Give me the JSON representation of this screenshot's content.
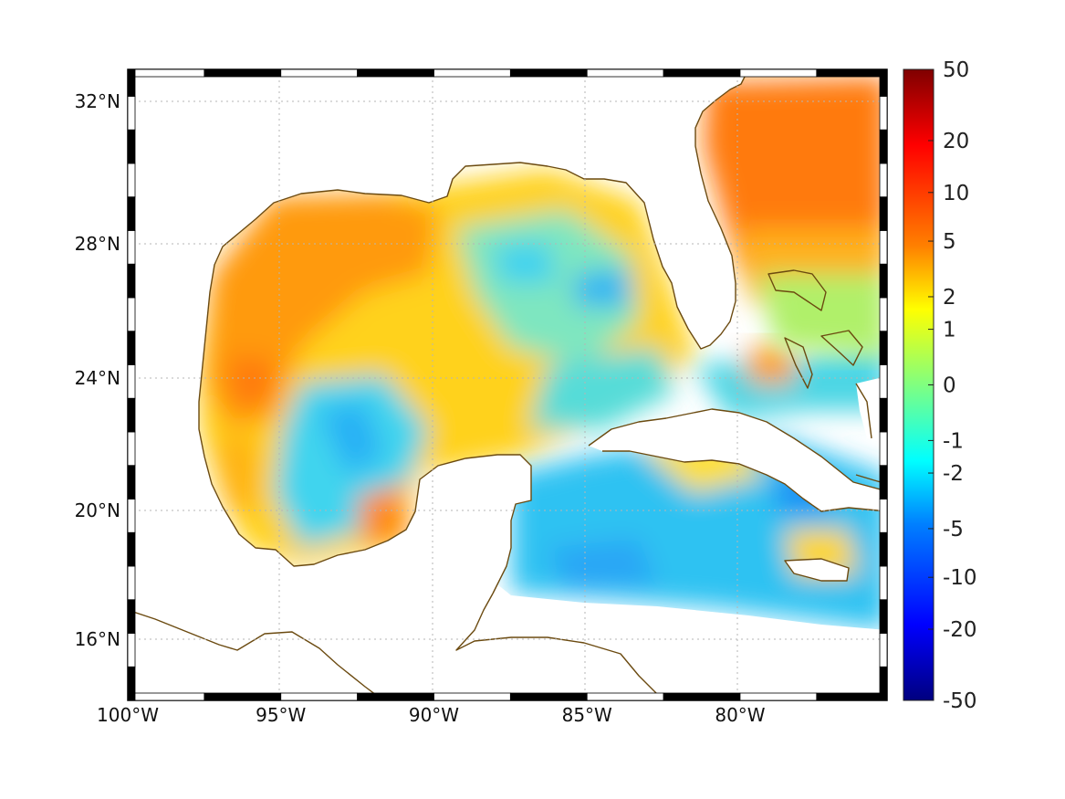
{
  "map": {
    "region": "Gulf of Mexico and Caribbean",
    "lon_range": [
      -100,
      -75.2
    ],
    "lat_range": [
      14.2,
      33.0
    ],
    "grid": true,
    "lon_ticks": [
      {
        "value": -100,
        "label": "100°W"
      },
      {
        "value": -95,
        "label": "95°W"
      },
      {
        "value": -90,
        "label": "90°W"
      },
      {
        "value": -85,
        "label": "85°W"
      },
      {
        "value": -80,
        "label": "80°W"
      }
    ],
    "lat_ticks": [
      {
        "value": 32,
        "label": "32°N"
      },
      {
        "value": 28,
        "label": "28°N"
      },
      {
        "value": 24,
        "label": "24°N"
      },
      {
        "value": 20,
        "label": "20°N"
      },
      {
        "value": 16,
        "label": "16°N"
      }
    ],
    "coastline_color": "#6b4a10",
    "land_color": "#ffffff"
  },
  "colorbar": {
    "scale": "symmetric-log",
    "range": [
      -50,
      50
    ],
    "colormap": "jet",
    "ticks": [
      "50",
      "20",
      "10",
      "5",
      "2",
      "1",
      "0",
      "-1",
      "-2",
      "-5",
      "-10",
      "-20",
      "-50"
    ],
    "tick_values": [
      50,
      20,
      10,
      5,
      2,
      1,
      0,
      -1,
      -2,
      -5,
      -10,
      -20,
      -50
    ]
  }
}
